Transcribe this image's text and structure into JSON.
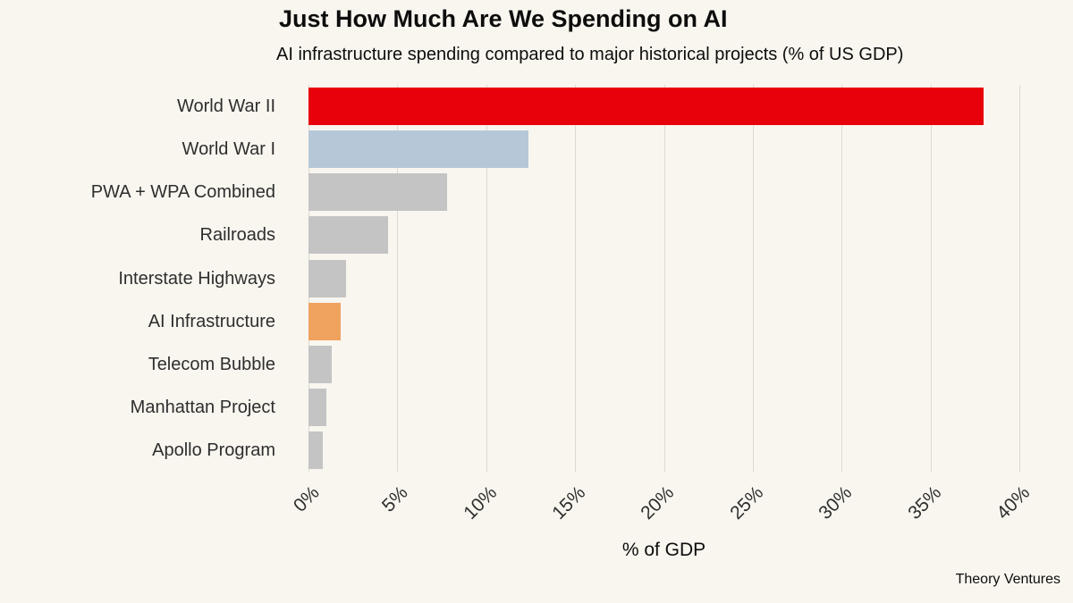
{
  "source": "Theory Ventures",
  "chart_data": {
    "type": "bar",
    "orientation": "horizontal",
    "title": "Just How Much Are We Spending on AI",
    "subtitle": "AI infrastructure spending compared to major historical projects (% of US GDP)",
    "xlabel": "% of GDP",
    "ylabel": "",
    "xlim": [
      0,
      40
    ],
    "grid": true,
    "legend": "none",
    "x_ticks": [
      "0%",
      "5%",
      "10%",
      "15%",
      "20%",
      "25%",
      "30%",
      "35%",
      "40%"
    ],
    "x_tick_values": [
      0,
      5,
      10,
      15,
      20,
      25,
      30,
      35,
      40
    ],
    "categories": [
      "World War II",
      "World War I",
      "PWA + WPA Combined",
      "Railroads",
      "Interstate Highways",
      "AI Infrastructure",
      "Telecom Bubble",
      "Manhattan Project",
      "Apollo Program"
    ],
    "values": [
      38,
      12.4,
      7.8,
      4.5,
      2.1,
      1.8,
      1.3,
      1.0,
      0.8
    ],
    "colors": [
      "#e8000b",
      "#b6c8d8",
      "#c4c4c4",
      "#c4c4c4",
      "#c4c4c4",
      "#efa35f",
      "#c4c4c4",
      "#c4c4c4",
      "#c4c4c4"
    ],
    "highlight_colors": {
      "world_war_ii": "#e8000b",
      "world_war_i": "#b6c8d8",
      "ai_infrastructure": "#efa35f",
      "default": "#c4c4c4"
    },
    "background_color": "#f9f6ef",
    "gridline_color": "#ddd9d1"
  }
}
